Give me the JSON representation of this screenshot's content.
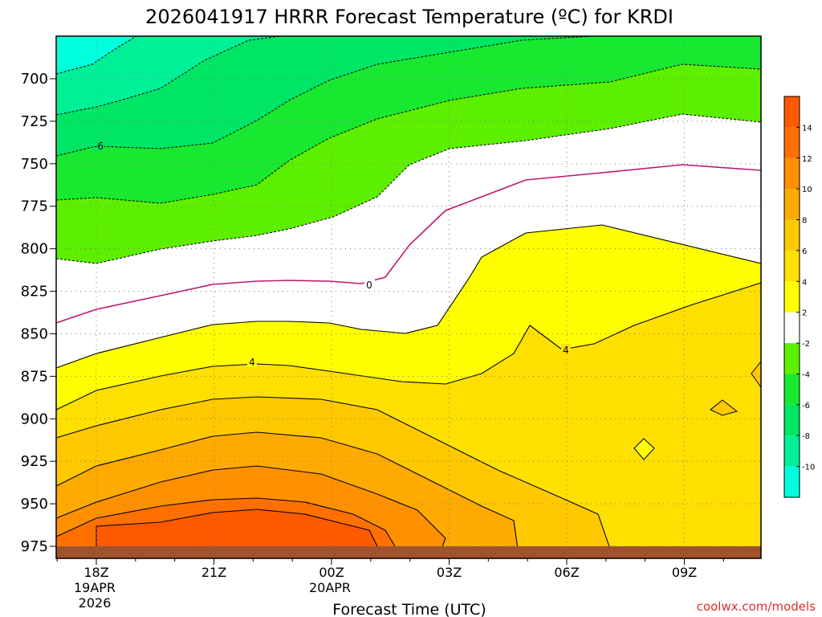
{
  "chart_data": {
    "type": "contour",
    "title": "2026041917 HRRR Forecast Temperature (ºC) for KRDI",
    "xlabel": "Forecast Time (UTC)",
    "ylabel": "",
    "y_ticks": [
      "700",
      "725",
      "750",
      "775",
      "800",
      "825",
      "850",
      "875",
      "900",
      "925",
      "950",
      "975"
    ],
    "y_values": [
      700,
      725,
      750,
      775,
      800,
      825,
      850,
      875,
      900,
      925,
      950,
      975
    ],
    "y_reversed": true,
    "x_ticks": [
      {
        "label": "18Z",
        "sub": [
          "19APR",
          "2026"
        ],
        "hour": 0
      },
      {
        "label": "21Z",
        "sub": [],
        "hour": 3
      },
      {
        "label": "00Z",
        "sub": [
          "20APR"
        ],
        "hour": 6
      },
      {
        "label": "03Z",
        "sub": [],
        "hour": 9
      },
      {
        "label": "06Z",
        "sub": [],
        "hour": 12
      },
      {
        "label": "09Z",
        "sub": [],
        "hour": 15
      }
    ],
    "grid": "dotted",
    "colorbar": {
      "labels": [
        "-10",
        "-8",
        "-6",
        "-4",
        "-2",
        "2",
        "4",
        "6",
        "8",
        "10",
        "12",
        "14"
      ],
      "colors": [
        "#00ffdd",
        "#00f098",
        "#00e664",
        "#18e830",
        "#5cf000",
        "#ffffff",
        "#ffff00",
        "#ffe000",
        "#ffc800",
        "#ffaa00",
        "#ff9000",
        "#ff7000",
        "#ff5a00"
      ]
    },
    "contour_labels": [
      "-6",
      "0",
      "4",
      "4"
    ],
    "annotation": "coolwx.com/models"
  }
}
